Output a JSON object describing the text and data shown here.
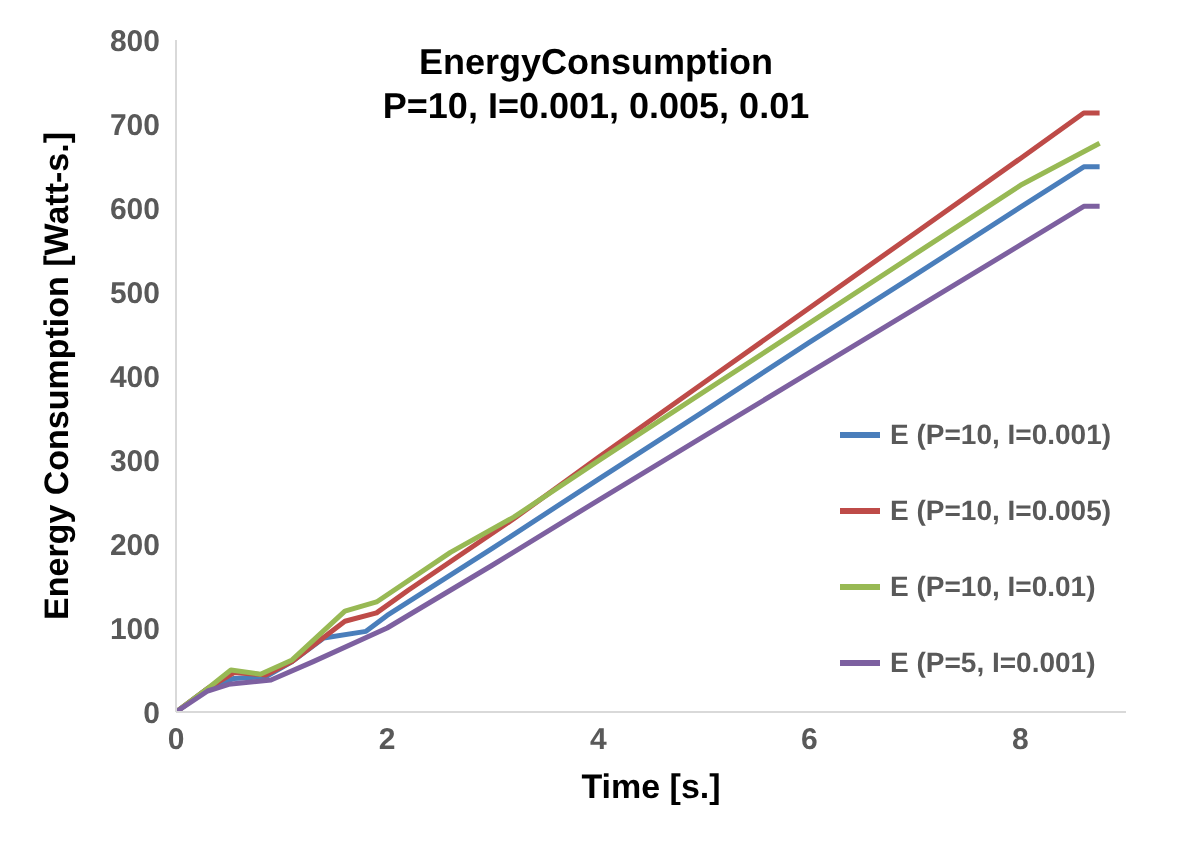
{
  "chart_data": {
    "type": "line",
    "title": "EnergyConsumption",
    "subtitle": "P=10, I=0.001, 0.005, 0.01",
    "xlabel": "Time [s.]",
    "ylabel": "Energy Consumption  [Watt-s.]",
    "xlim": [
      0,
      9
    ],
    "xticks": [
      0,
      2,
      4,
      6,
      8
    ],
    "ylim": [
      0,
      800
    ],
    "yticks": [
      0,
      100,
      200,
      300,
      400,
      500,
      600,
      700,
      800
    ],
    "grid": false,
    "legend": "right",
    "marker": "none",
    "line_style": "solid",
    "series": [
      {
        "name": "E (P=10, I=0.001)",
        "color": "#4a7ebb",
        "x": [
          0,
          0.3,
          0.55,
          0.85,
          1.1,
          1.4,
          1.8,
          2,
          3,
          4,
          5,
          6,
          7,
          8,
          8.6,
          8.75
        ],
        "values": [
          0,
          28,
          40,
          42,
          60,
          88,
          96,
          115,
          195,
          277,
          358,
          440,
          520,
          601,
          649,
          649
        ]
      },
      {
        "name": "E (P=10, I=0.005)",
        "color": "#be4b48",
        "x": [
          0,
          0.3,
          0.55,
          0.85,
          1.1,
          1.6,
          1.9,
          2.2,
          3.2,
          4,
          5,
          6,
          7,
          8,
          8.6,
          8.75
        ],
        "values": [
          0,
          28,
          47,
          44,
          60,
          108,
          118,
          145,
          230,
          303,
          392,
          481,
          570,
          659,
          713,
          713
        ]
      },
      {
        "name": "E (P=10, I=0.01)",
        "color": "#98b954",
        "x": [
          0,
          0.3,
          0.52,
          0.8,
          1.1,
          1.6,
          1.9,
          2.6,
          3.2,
          4,
          5,
          6,
          7,
          8,
          8.75
        ],
        "values": [
          0,
          28,
          50,
          45,
          62,
          120,
          131,
          190,
          232,
          299,
          381,
          463,
          545,
          627,
          677
        ]
      },
      {
        "name": "E (P=5, I=0.001)",
        "color": "#7d60a0",
        "x": [
          0,
          0.3,
          0.5,
          0.9,
          1.3,
          2,
          3,
          4,
          5,
          6,
          7,
          8,
          8.6,
          8.75
        ],
        "values": [
          0,
          25,
          33,
          38,
          60,
          100,
          175,
          252,
          328,
          404,
          480,
          556,
          602,
          602
        ]
      }
    ]
  }
}
